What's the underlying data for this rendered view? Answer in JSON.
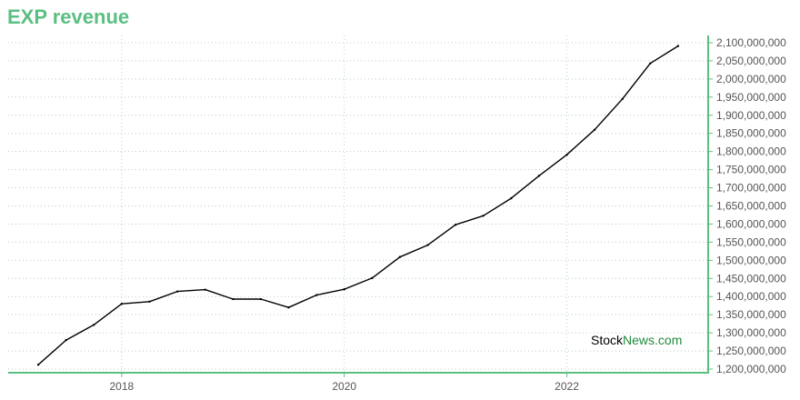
{
  "colors": {
    "title": "#5bbf82",
    "axis": "#5bbf82",
    "grid_horizontal": "#bfc7c4",
    "grid_vertical": "#a8dcc4",
    "line": "#000000",
    "watermark_dark": "#000000",
    "watermark_green": "#1f8a3c"
  },
  "watermark": {
    "part1": "Stock",
    "part2": "News.com"
  },
  "chart_data": {
    "type": "line",
    "title": "EXP revenue",
    "xlabel": "",
    "ylabel": "",
    "x_tick_labels": [
      "2018",
      "2020",
      "2022"
    ],
    "x_ticks": [
      2018,
      2020,
      2022
    ],
    "xlim": [
      2016.98,
      2023.27
    ],
    "ylim": [
      1190000000,
      2120000000
    ],
    "y_ticks": [
      1200000000,
      1250000000,
      1300000000,
      1350000000,
      1400000000,
      1450000000,
      1500000000,
      1550000000,
      1600000000,
      1650000000,
      1700000000,
      1750000000,
      1800000000,
      1850000000,
      1900000000,
      1950000000,
      2000000000,
      2050000000,
      2100000000
    ],
    "y_tick_labels": [
      "1,200,000,000",
      "1,250,000,000",
      "1,300,000,000",
      "1,350,000,000",
      "1,400,000,000",
      "1,450,000,000",
      "1,500,000,000",
      "1,550,000,000",
      "1,600,000,000",
      "1,650,000,000",
      "1,700,000,000",
      "1,750,000,000",
      "1,800,000,000",
      "1,850,000,000",
      "1,900,000,000",
      "1,950,000,000",
      "2,000,000,000",
      "2,050,000,000",
      "2,100,000,000"
    ],
    "y_axis_position": "right",
    "grid": true,
    "series": [
      {
        "x": [
          2017.25,
          2017.5,
          2017.75,
          2018.0,
          2018.25,
          2018.5,
          2018.75,
          2019.0,
          2019.25,
          2019.5,
          2019.75,
          2020.0,
          2020.25,
          2020.5,
          2020.75,
          2021.0,
          2021.25,
          2021.5,
          2021.75,
          2022.0,
          2022.25,
          2022.5,
          2022.75,
          2023.0
        ],
        "values": [
          1212000000,
          1280000000,
          1322000000,
          1380000000,
          1386000000,
          1414000000,
          1419000000,
          1393000000,
          1393000000,
          1370000000,
          1404000000,
          1420000000,
          1451000000,
          1509000000,
          1542000000,
          1598000000,
          1623000000,
          1671000000,
          1733000000,
          1791000000,
          1860000000,
          1945000000,
          2043000000,
          2091000000
        ]
      }
    ]
  }
}
